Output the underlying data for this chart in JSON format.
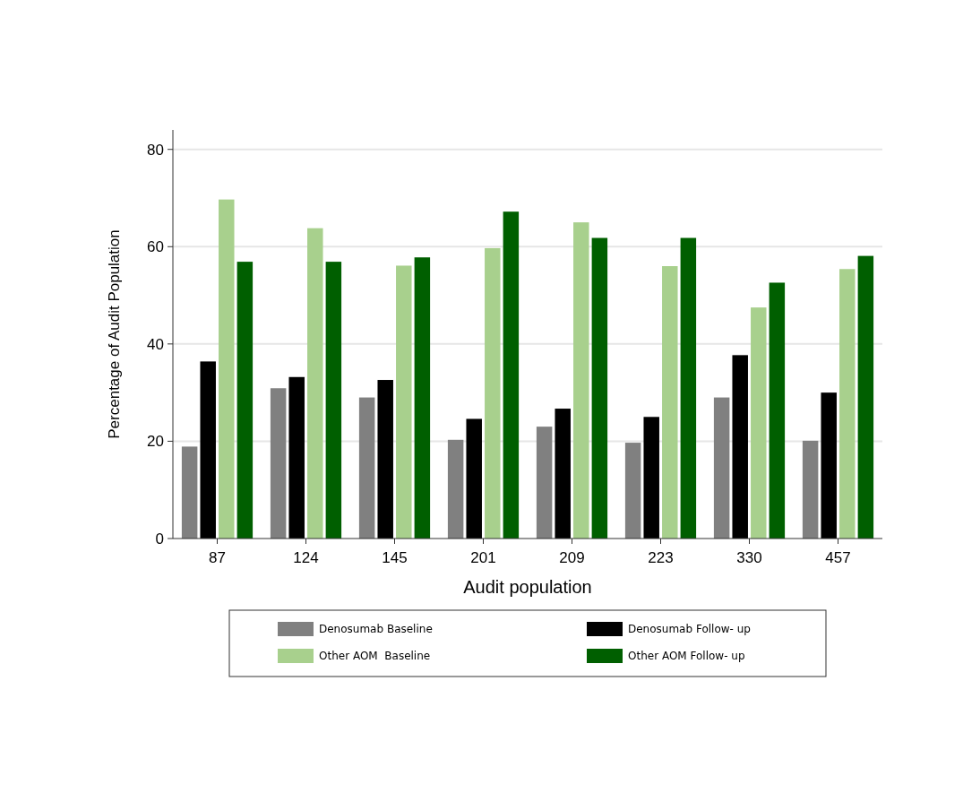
{
  "chart_data": {
    "type": "bar",
    "xlabel": "Audit population",
    "ylabel": "Percentage of Audit Population",
    "categories": [
      "87",
      "124",
      "145",
      "201",
      "209",
      "223",
      "330",
      "457"
    ],
    "series": [
      {
        "name": "Denosumab Baseline",
        "color": "#808080",
        "values": [
          18.9,
          30.9,
          29.0,
          20.3,
          23.0,
          19.7,
          29.0,
          20.1
        ]
      },
      {
        "name": "Denosumab Follow- up",
        "color": "#000000",
        "values": [
          36.4,
          33.2,
          32.6,
          24.6,
          26.7,
          25.0,
          37.7,
          30.0
        ]
      },
      {
        "name": "Other AOM  Baseline",
        "color": "#a8d08d",
        "values": [
          69.7,
          63.8,
          56.1,
          59.7,
          65.0,
          56.0,
          47.5,
          55.4
        ]
      },
      {
        "name": "Other AOM Follow- up",
        "color": "#005f00",
        "values": [
          56.9,
          56.9,
          57.8,
          67.2,
          61.8,
          61.8,
          52.6,
          58.1
        ]
      }
    ],
    "ylim": [
      0,
      84
    ],
    "yticks": [
      0,
      20,
      40,
      60,
      80
    ],
    "grid": "y",
    "legend": "bottom"
  }
}
